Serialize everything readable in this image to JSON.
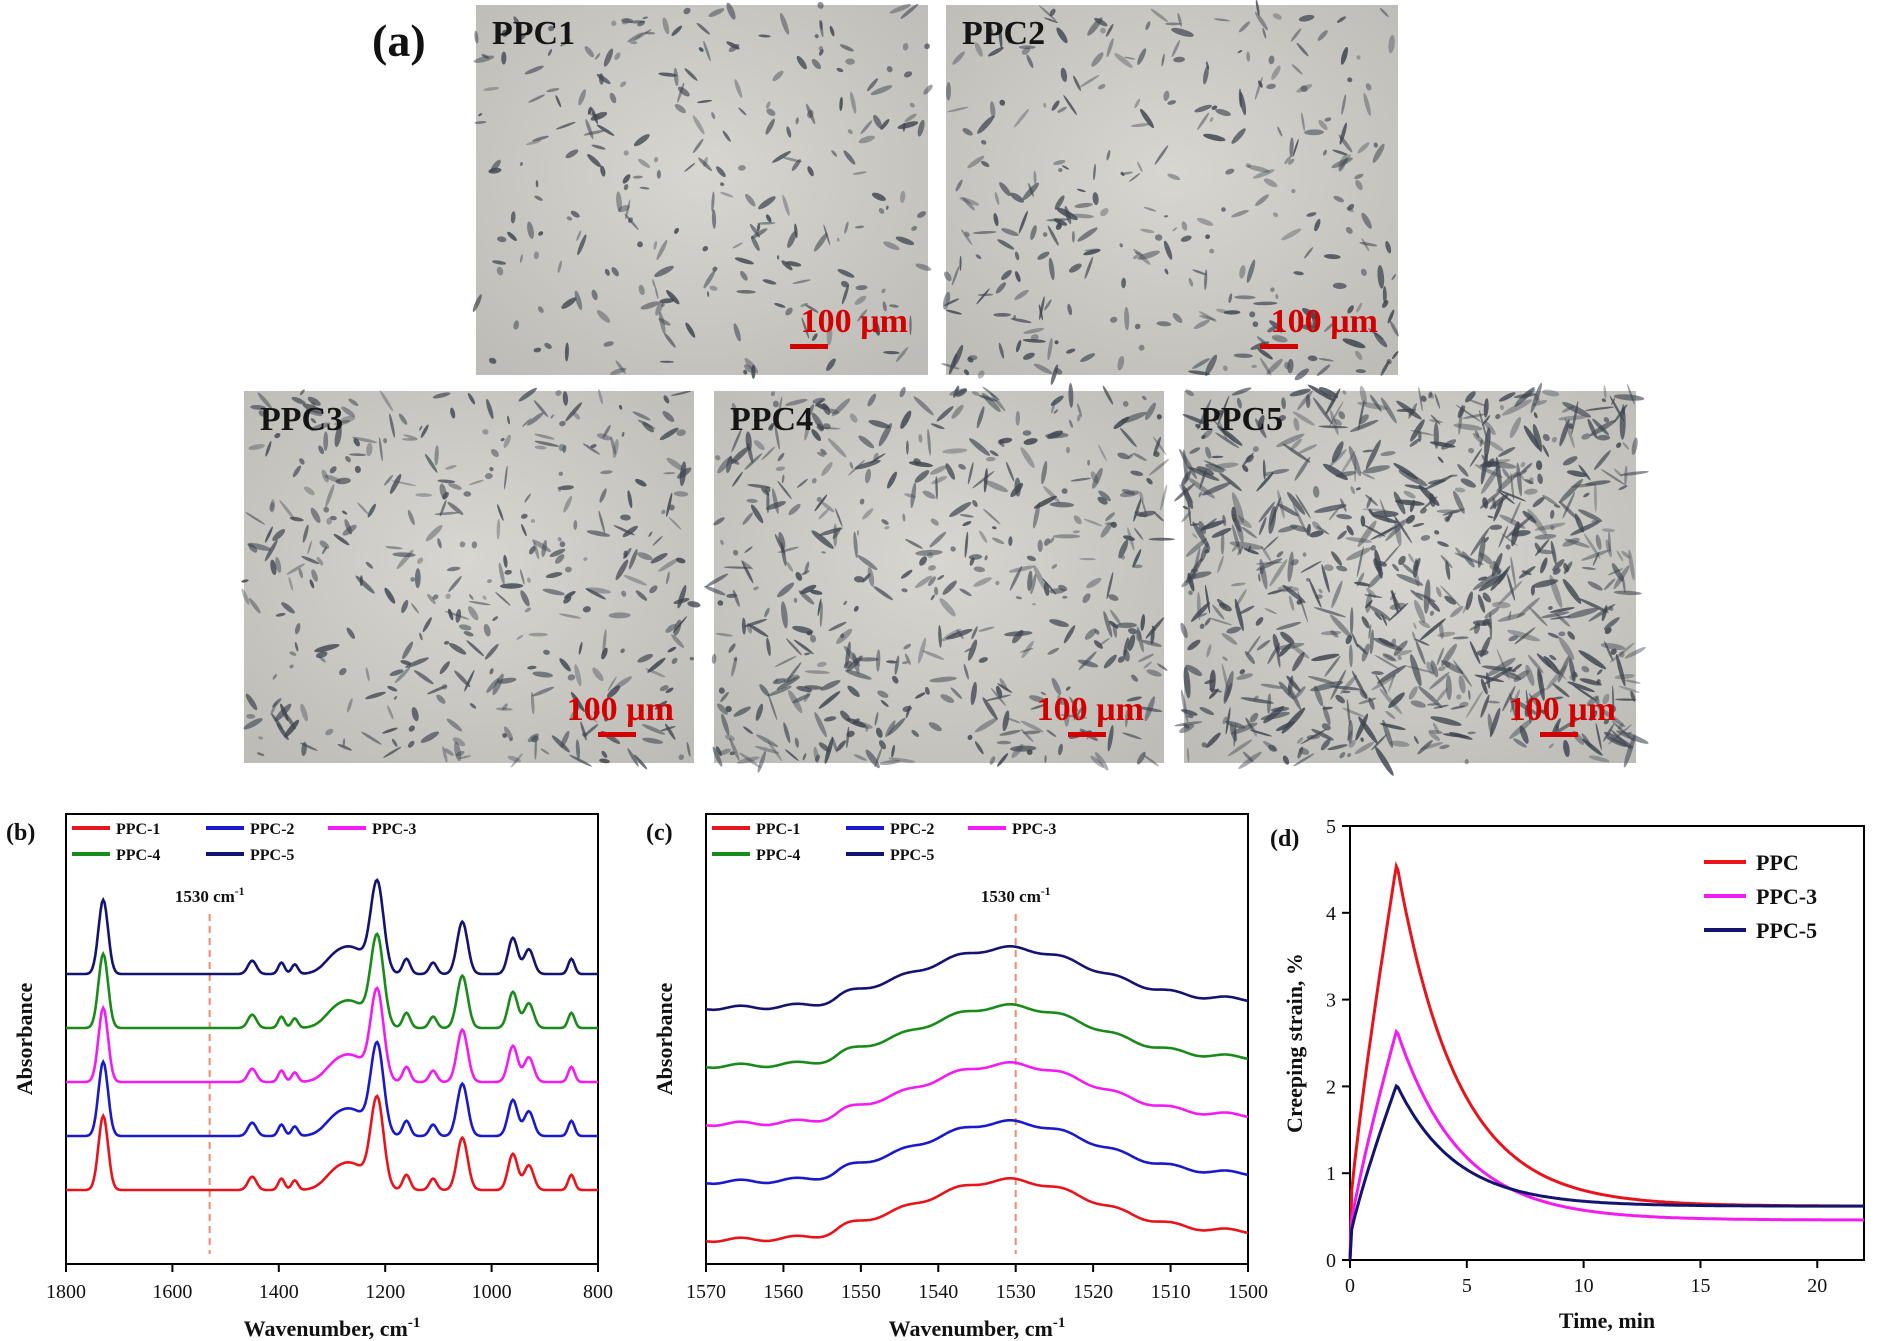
{
  "panel_a": {
    "label": "(a)",
    "scale_text": "100 µm",
    "images": [
      {
        "name": "PPC1",
        "density": 0.16
      },
      {
        "name": "PPC2",
        "density": 0.22
      },
      {
        "name": "PPC3",
        "density": 0.3
      },
      {
        "name": "PPC4",
        "density": 0.42
      },
      {
        "name": "PPC5",
        "density": 0.75
      }
    ]
  },
  "colors": {
    "PPC-1": "#e8141b",
    "PPC-2": "#1a1ac8",
    "PPC-3": "#f21bf2",
    "PPC-4": "#1a8a1a",
    "PPC-5": "#131370"
  },
  "chart_data": [
    {
      "id": "b",
      "panel_label": "(b)",
      "type": "line",
      "xlabel": "Wavenumber, cm",
      "xlabel_sup": "-1",
      "ylabel": "Absorbance",
      "xlim": [
        1800,
        800
      ],
      "x_ticks": [
        "1800",
        "1600",
        "1400",
        "1200",
        "1000",
        "800"
      ],
      "annotation": {
        "text": "1530 cm",
        "sup": "-1",
        "x": 1530
      },
      "legend": [
        "PPC-1",
        "PPC-2",
        "PPC-3",
        "PPC-4",
        "PPC-5"
      ],
      "series_offsets": [
        0,
        1,
        2,
        3,
        4
      ]
    },
    {
      "id": "c",
      "panel_label": "(c)",
      "type": "line",
      "xlabel": "Wavenumber, cm",
      "xlabel_sup": "-1",
      "ylabel": "Absorbance",
      "xlim": [
        1570,
        1500
      ],
      "x_ticks": [
        "1570",
        "1560",
        "1550",
        "1540",
        "1530",
        "1520",
        "1510",
        "1500"
      ],
      "annotation": {
        "text": "1530 cm",
        "sup": "-1",
        "x": 1530
      },
      "legend": [
        "PPC-1",
        "PPC-2",
        "PPC-3",
        "PPC-4",
        "PPC-5"
      ],
      "series_offsets": [
        0,
        1,
        2,
        3,
        4
      ]
    },
    {
      "id": "d",
      "panel_label": "(d)",
      "type": "line",
      "xlabel": "Time, min",
      "ylabel": "Creeping strain, %",
      "xlim": [
        0,
        22
      ],
      "ylim": [
        0,
        5
      ],
      "x_ticks": [
        "0",
        "5",
        "10",
        "15",
        "20"
      ],
      "y_ticks": [
        "0",
        "1",
        "2",
        "3",
        "4",
        "5"
      ],
      "legend_position": "top-right",
      "series": [
        {
          "name": "PPC",
          "color": "#e8141b",
          "peak_time": 2.0,
          "peak": 4.57,
          "final": 0.62,
          "tau": 2.6
        },
        {
          "name": "PPC-3",
          "color": "#f21bf2",
          "peak_time": 2.0,
          "peak": 2.65,
          "final": 0.46,
          "tau": 2.7
        },
        {
          "name": "PPC-5",
          "color": "#131370",
          "peak_time": 2.0,
          "peak": 2.02,
          "final": 0.62,
          "tau": 2.5
        }
      ]
    }
  ]
}
